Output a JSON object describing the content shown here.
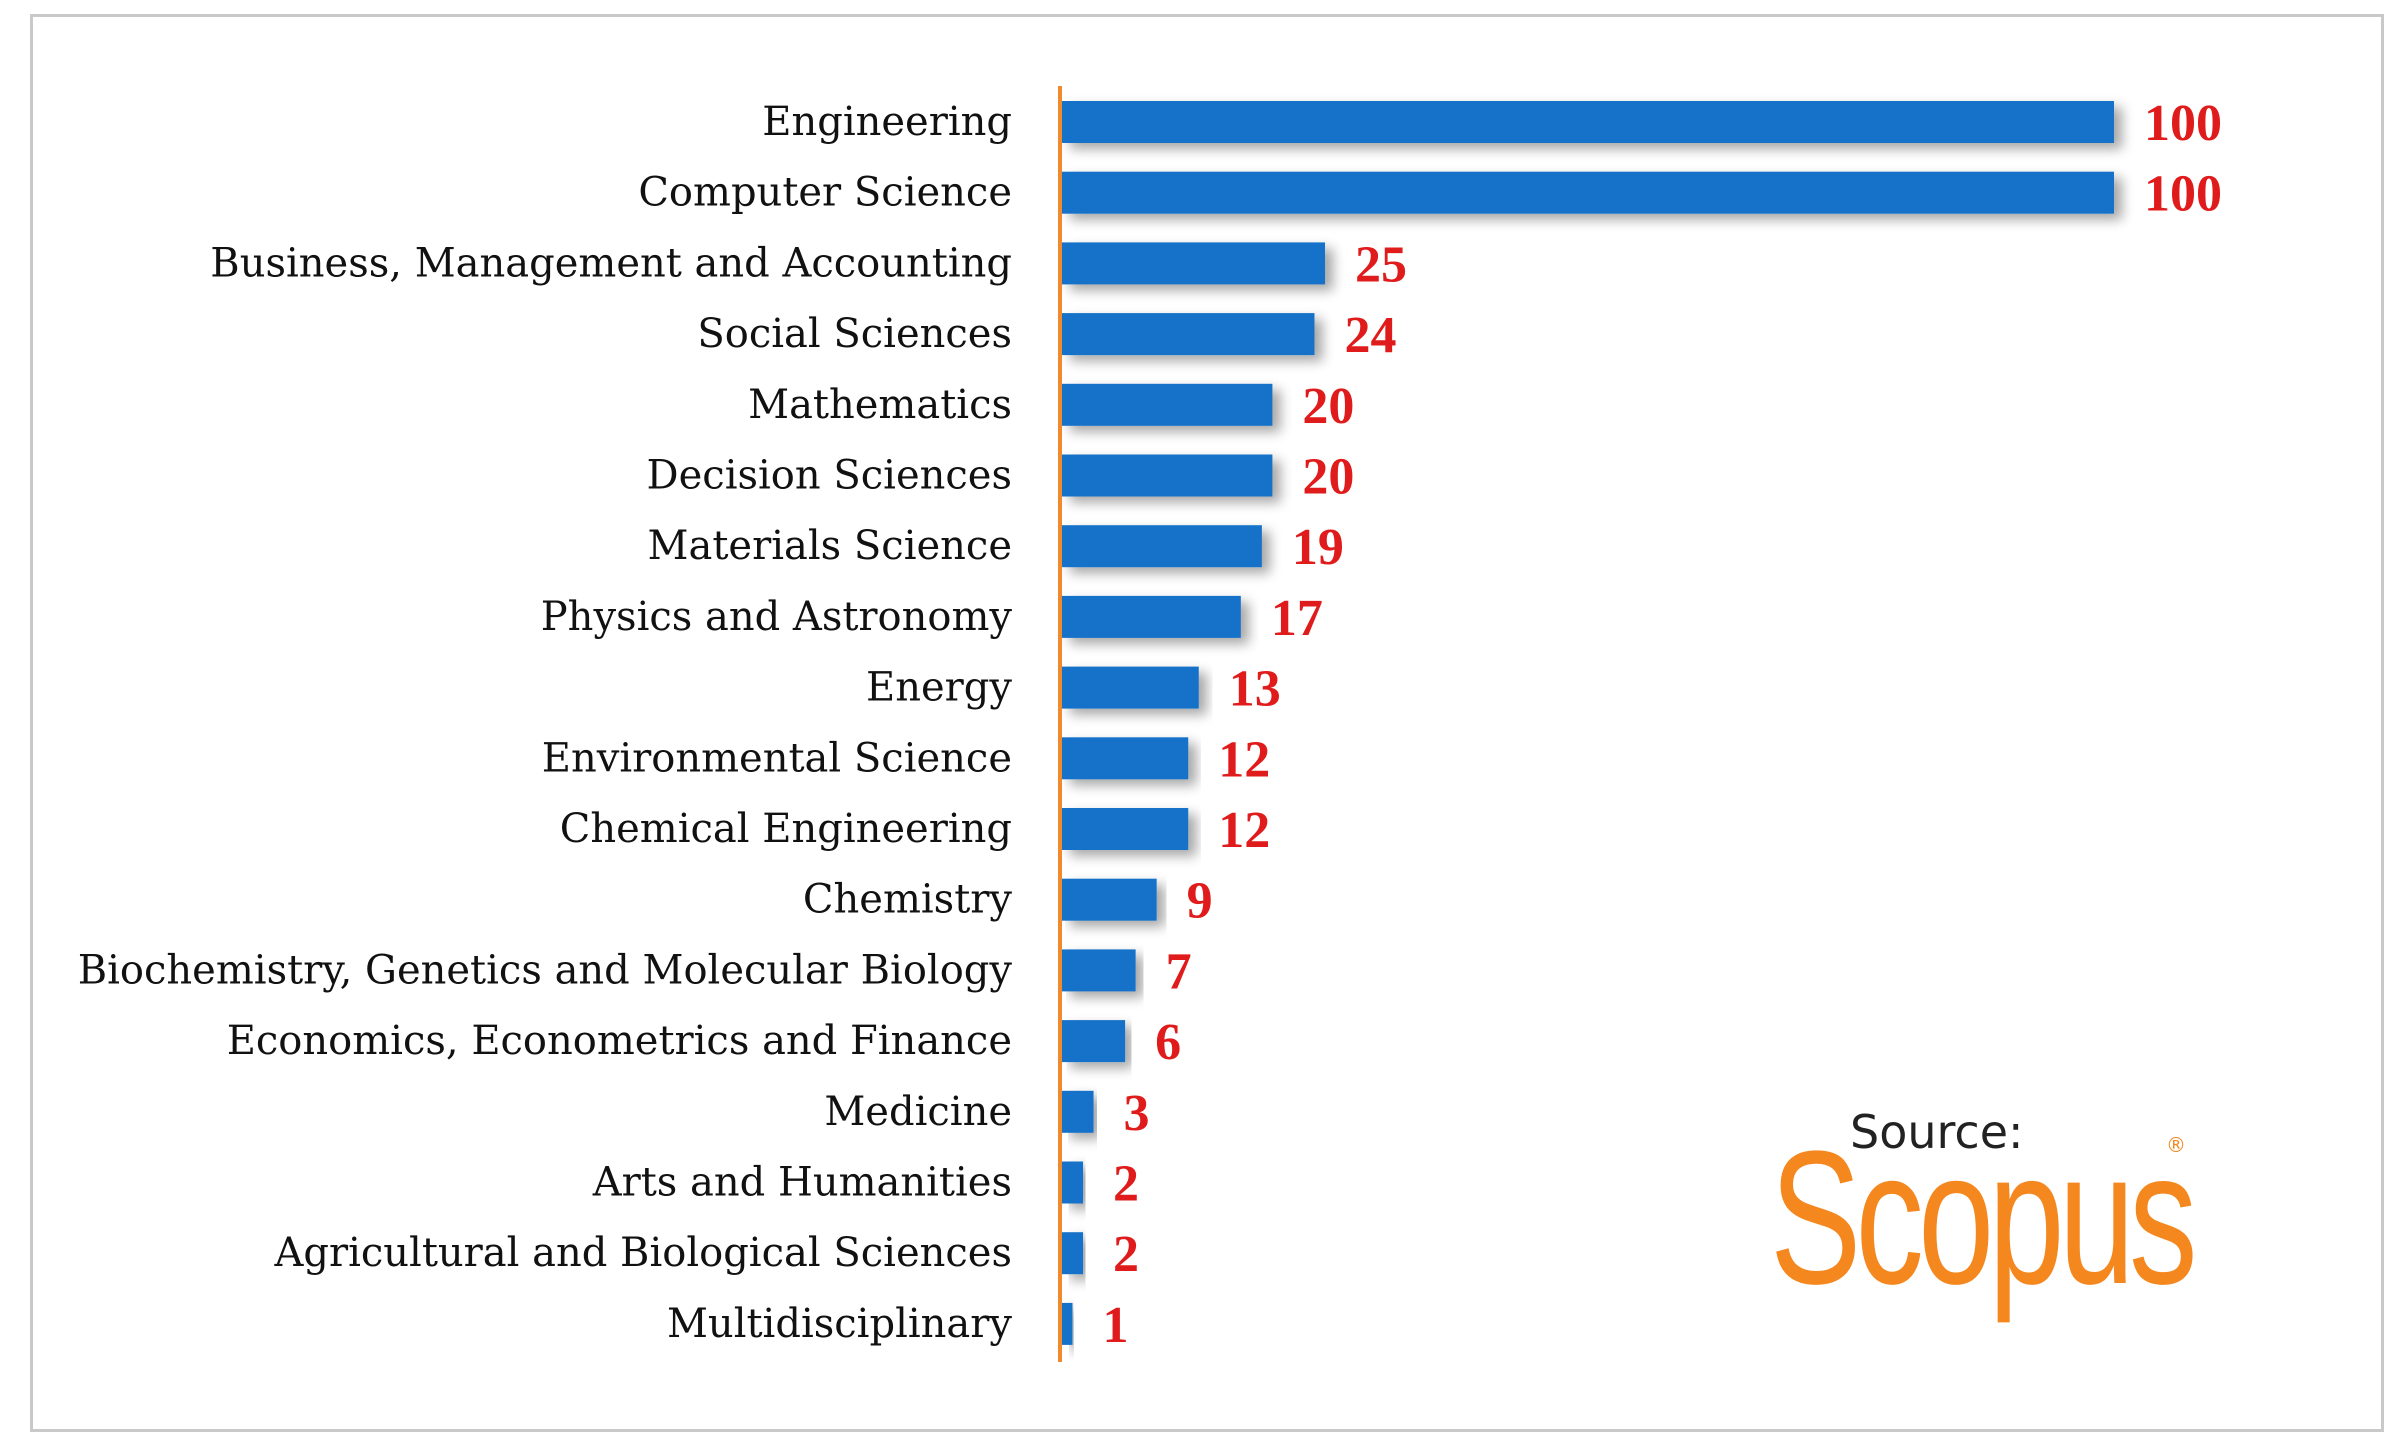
{
  "colors": {
    "bar": "#1872c9",
    "value_label": "#e01b1b",
    "axis_line": "#f08a2c",
    "brand": "#f5871f"
  },
  "chart_data": {
    "type": "bar",
    "orientation": "horizontal",
    "categories": [
      "Engineering",
      "Computer Science",
      "Business, Management and Accounting",
      "Social Sciences",
      "Mathematics",
      "Decision Sciences",
      "Materials Science",
      "Physics and Astronomy",
      "Energy",
      "Environmental Science",
      "Chemical Engineering",
      "Chemistry",
      "Biochemistry, Genetics and Molecular Biology",
      "Economics, Econometrics and Finance",
      "Medicine",
      "Arts and Humanities",
      "Agricultural and Biological Sciences",
      "Multidisciplinary"
    ],
    "values": [
      100,
      100,
      25,
      24,
      20,
      20,
      19,
      17,
      13,
      12,
      12,
      9,
      7,
      6,
      3,
      2,
      2,
      1
    ],
    "xlim": [
      0,
      100
    ],
    "grid": false,
    "title": "",
    "xlabel": "",
    "ylabel": ""
  },
  "source": {
    "label": "Source:",
    "brand": "Scopus",
    "mark": "®"
  }
}
